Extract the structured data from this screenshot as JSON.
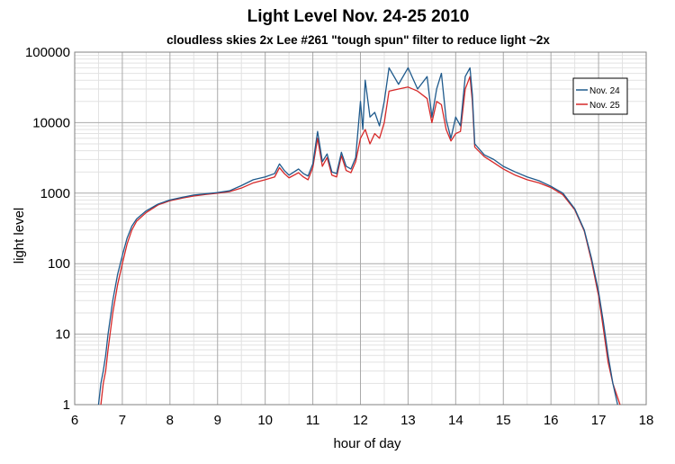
{
  "chart_data": {
    "type": "line",
    "title": "Light Level   Nov. 24-25 2010",
    "subtitle": "cloudless skies   2x Lee #261 \"tough spun\" filter to reduce light ~2x",
    "xlabel": "hour of day",
    "ylabel": "light level",
    "xlim": [
      6,
      18
    ],
    "ylim": [
      1,
      100000
    ],
    "yscale": "log",
    "x_ticks": [
      "6",
      "7",
      "8",
      "9",
      "10",
      "11",
      "12",
      "13",
      "14",
      "15",
      "16",
      "17",
      "18"
    ],
    "y_ticks": [
      "1",
      "10",
      "100",
      "1000",
      "10000",
      "100000"
    ],
    "grid": true,
    "legend_position": "top-right",
    "series": [
      {
        "name": "Nov. 24",
        "color": "#1f5a8c",
        "points": [
          [
            6.5,
            1
          ],
          [
            6.55,
            2
          ],
          [
            6.6,
            3
          ],
          [
            6.65,
            5
          ],
          [
            6.7,
            10
          ],
          [
            6.8,
            30
          ],
          [
            6.9,
            70
          ],
          [
            7.0,
            130
          ],
          [
            7.1,
            230
          ],
          [
            7.2,
            340
          ],
          [
            7.3,
            430
          ],
          [
            7.5,
            560
          ],
          [
            7.75,
            700
          ],
          [
            8.0,
            800
          ],
          [
            8.25,
            870
          ],
          [
            8.5,
            940
          ],
          [
            8.75,
            980
          ],
          [
            9.0,
            1020
          ],
          [
            9.25,
            1080
          ],
          [
            9.5,
            1280
          ],
          [
            9.75,
            1550
          ],
          [
            10.0,
            1700
          ],
          [
            10.2,
            1900
          ],
          [
            10.3,
            2600
          ],
          [
            10.4,
            2100
          ],
          [
            10.5,
            1800
          ],
          [
            10.7,
            2200
          ],
          [
            10.8,
            1900
          ],
          [
            10.9,
            1750
          ],
          [
            11.0,
            2600
          ],
          [
            11.1,
            7500
          ],
          [
            11.2,
            2800
          ],
          [
            11.3,
            3600
          ],
          [
            11.4,
            2000
          ],
          [
            11.5,
            1900
          ],
          [
            11.6,
            3800
          ],
          [
            11.7,
            2400
          ],
          [
            11.8,
            2200
          ],
          [
            11.9,
            3200
          ],
          [
            12.0,
            20000
          ],
          [
            12.05,
            8000
          ],
          [
            12.1,
            40000
          ],
          [
            12.2,
            12000
          ],
          [
            12.3,
            14000
          ],
          [
            12.4,
            9000
          ],
          [
            12.5,
            20000
          ],
          [
            12.6,
            60000
          ],
          [
            12.8,
            35000
          ],
          [
            13.0,
            60000
          ],
          [
            13.2,
            30000
          ],
          [
            13.4,
            45000
          ],
          [
            13.5,
            12000
          ],
          [
            13.6,
            30000
          ],
          [
            13.7,
            50000
          ],
          [
            13.8,
            11000
          ],
          [
            13.9,
            6000
          ],
          [
            14.0,
            12000
          ],
          [
            14.1,
            9000
          ],
          [
            14.2,
            45000
          ],
          [
            14.3,
            60000
          ],
          [
            14.35,
            25000
          ],
          [
            14.4,
            5000
          ],
          [
            14.6,
            3500
          ],
          [
            14.8,
            3000
          ],
          [
            15.0,
            2400
          ],
          [
            15.25,
            2000
          ],
          [
            15.5,
            1700
          ],
          [
            15.75,
            1500
          ],
          [
            16.0,
            1250
          ],
          [
            16.25,
            1000
          ],
          [
            16.5,
            600
          ],
          [
            16.7,
            300
          ],
          [
            16.85,
            120
          ],
          [
            17.0,
            40
          ],
          [
            17.1,
            15
          ],
          [
            17.2,
            5
          ],
          [
            17.3,
            2
          ],
          [
            17.4,
            1
          ]
        ]
      },
      {
        "name": "Nov. 25",
        "color": "#d62828",
        "points": [
          [
            6.55,
            1
          ],
          [
            6.6,
            2
          ],
          [
            6.65,
            3
          ],
          [
            6.7,
            6
          ],
          [
            6.8,
            20
          ],
          [
            6.9,
            50
          ],
          [
            7.0,
            100
          ],
          [
            7.1,
            190
          ],
          [
            7.2,
            300
          ],
          [
            7.3,
            400
          ],
          [
            7.5,
            530
          ],
          [
            7.75,
            680
          ],
          [
            8.0,
            780
          ],
          [
            8.25,
            850
          ],
          [
            8.5,
            910
          ],
          [
            8.75,
            960
          ],
          [
            9.0,
            1000
          ],
          [
            9.25,
            1050
          ],
          [
            9.5,
            1180
          ],
          [
            9.75,
            1400
          ],
          [
            10.0,
            1550
          ],
          [
            10.2,
            1700
          ],
          [
            10.3,
            2300
          ],
          [
            10.4,
            1900
          ],
          [
            10.5,
            1650
          ],
          [
            10.7,
            1950
          ],
          [
            10.8,
            1700
          ],
          [
            10.9,
            1550
          ],
          [
            11.0,
            2300
          ],
          [
            11.1,
            6000
          ],
          [
            11.2,
            2400
          ],
          [
            11.3,
            3200
          ],
          [
            11.4,
            1800
          ],
          [
            11.5,
            1700
          ],
          [
            11.6,
            3400
          ],
          [
            11.7,
            2100
          ],
          [
            11.8,
            1950
          ],
          [
            11.9,
            2800
          ],
          [
            12.0,
            6000
          ],
          [
            12.1,
            8000
          ],
          [
            12.2,
            5000
          ],
          [
            12.3,
            7000
          ],
          [
            12.4,
            6000
          ],
          [
            12.5,
            10000
          ],
          [
            12.6,
            28000
          ],
          [
            12.8,
            30000
          ],
          [
            13.0,
            32000
          ],
          [
            13.2,
            28000
          ],
          [
            13.4,
            22000
          ],
          [
            13.5,
            10000
          ],
          [
            13.6,
            20000
          ],
          [
            13.7,
            18000
          ],
          [
            13.8,
            8000
          ],
          [
            13.9,
            5500
          ],
          [
            14.0,
            7000
          ],
          [
            14.1,
            7500
          ],
          [
            14.2,
            30000
          ],
          [
            14.3,
            45000
          ],
          [
            14.35,
            20000
          ],
          [
            14.4,
            4500
          ],
          [
            14.6,
            3300
          ],
          [
            14.8,
            2700
          ],
          [
            15.0,
            2200
          ],
          [
            15.25,
            1800
          ],
          [
            15.5,
            1550
          ],
          [
            15.75,
            1400
          ],
          [
            16.0,
            1200
          ],
          [
            16.25,
            950
          ],
          [
            16.5,
            580
          ],
          [
            16.7,
            290
          ],
          [
            16.85,
            110
          ],
          [
            17.0,
            35
          ],
          [
            17.1,
            12
          ],
          [
            17.2,
            4
          ],
          [
            17.3,
            2
          ],
          [
            17.45,
            1
          ]
        ]
      }
    ]
  }
}
